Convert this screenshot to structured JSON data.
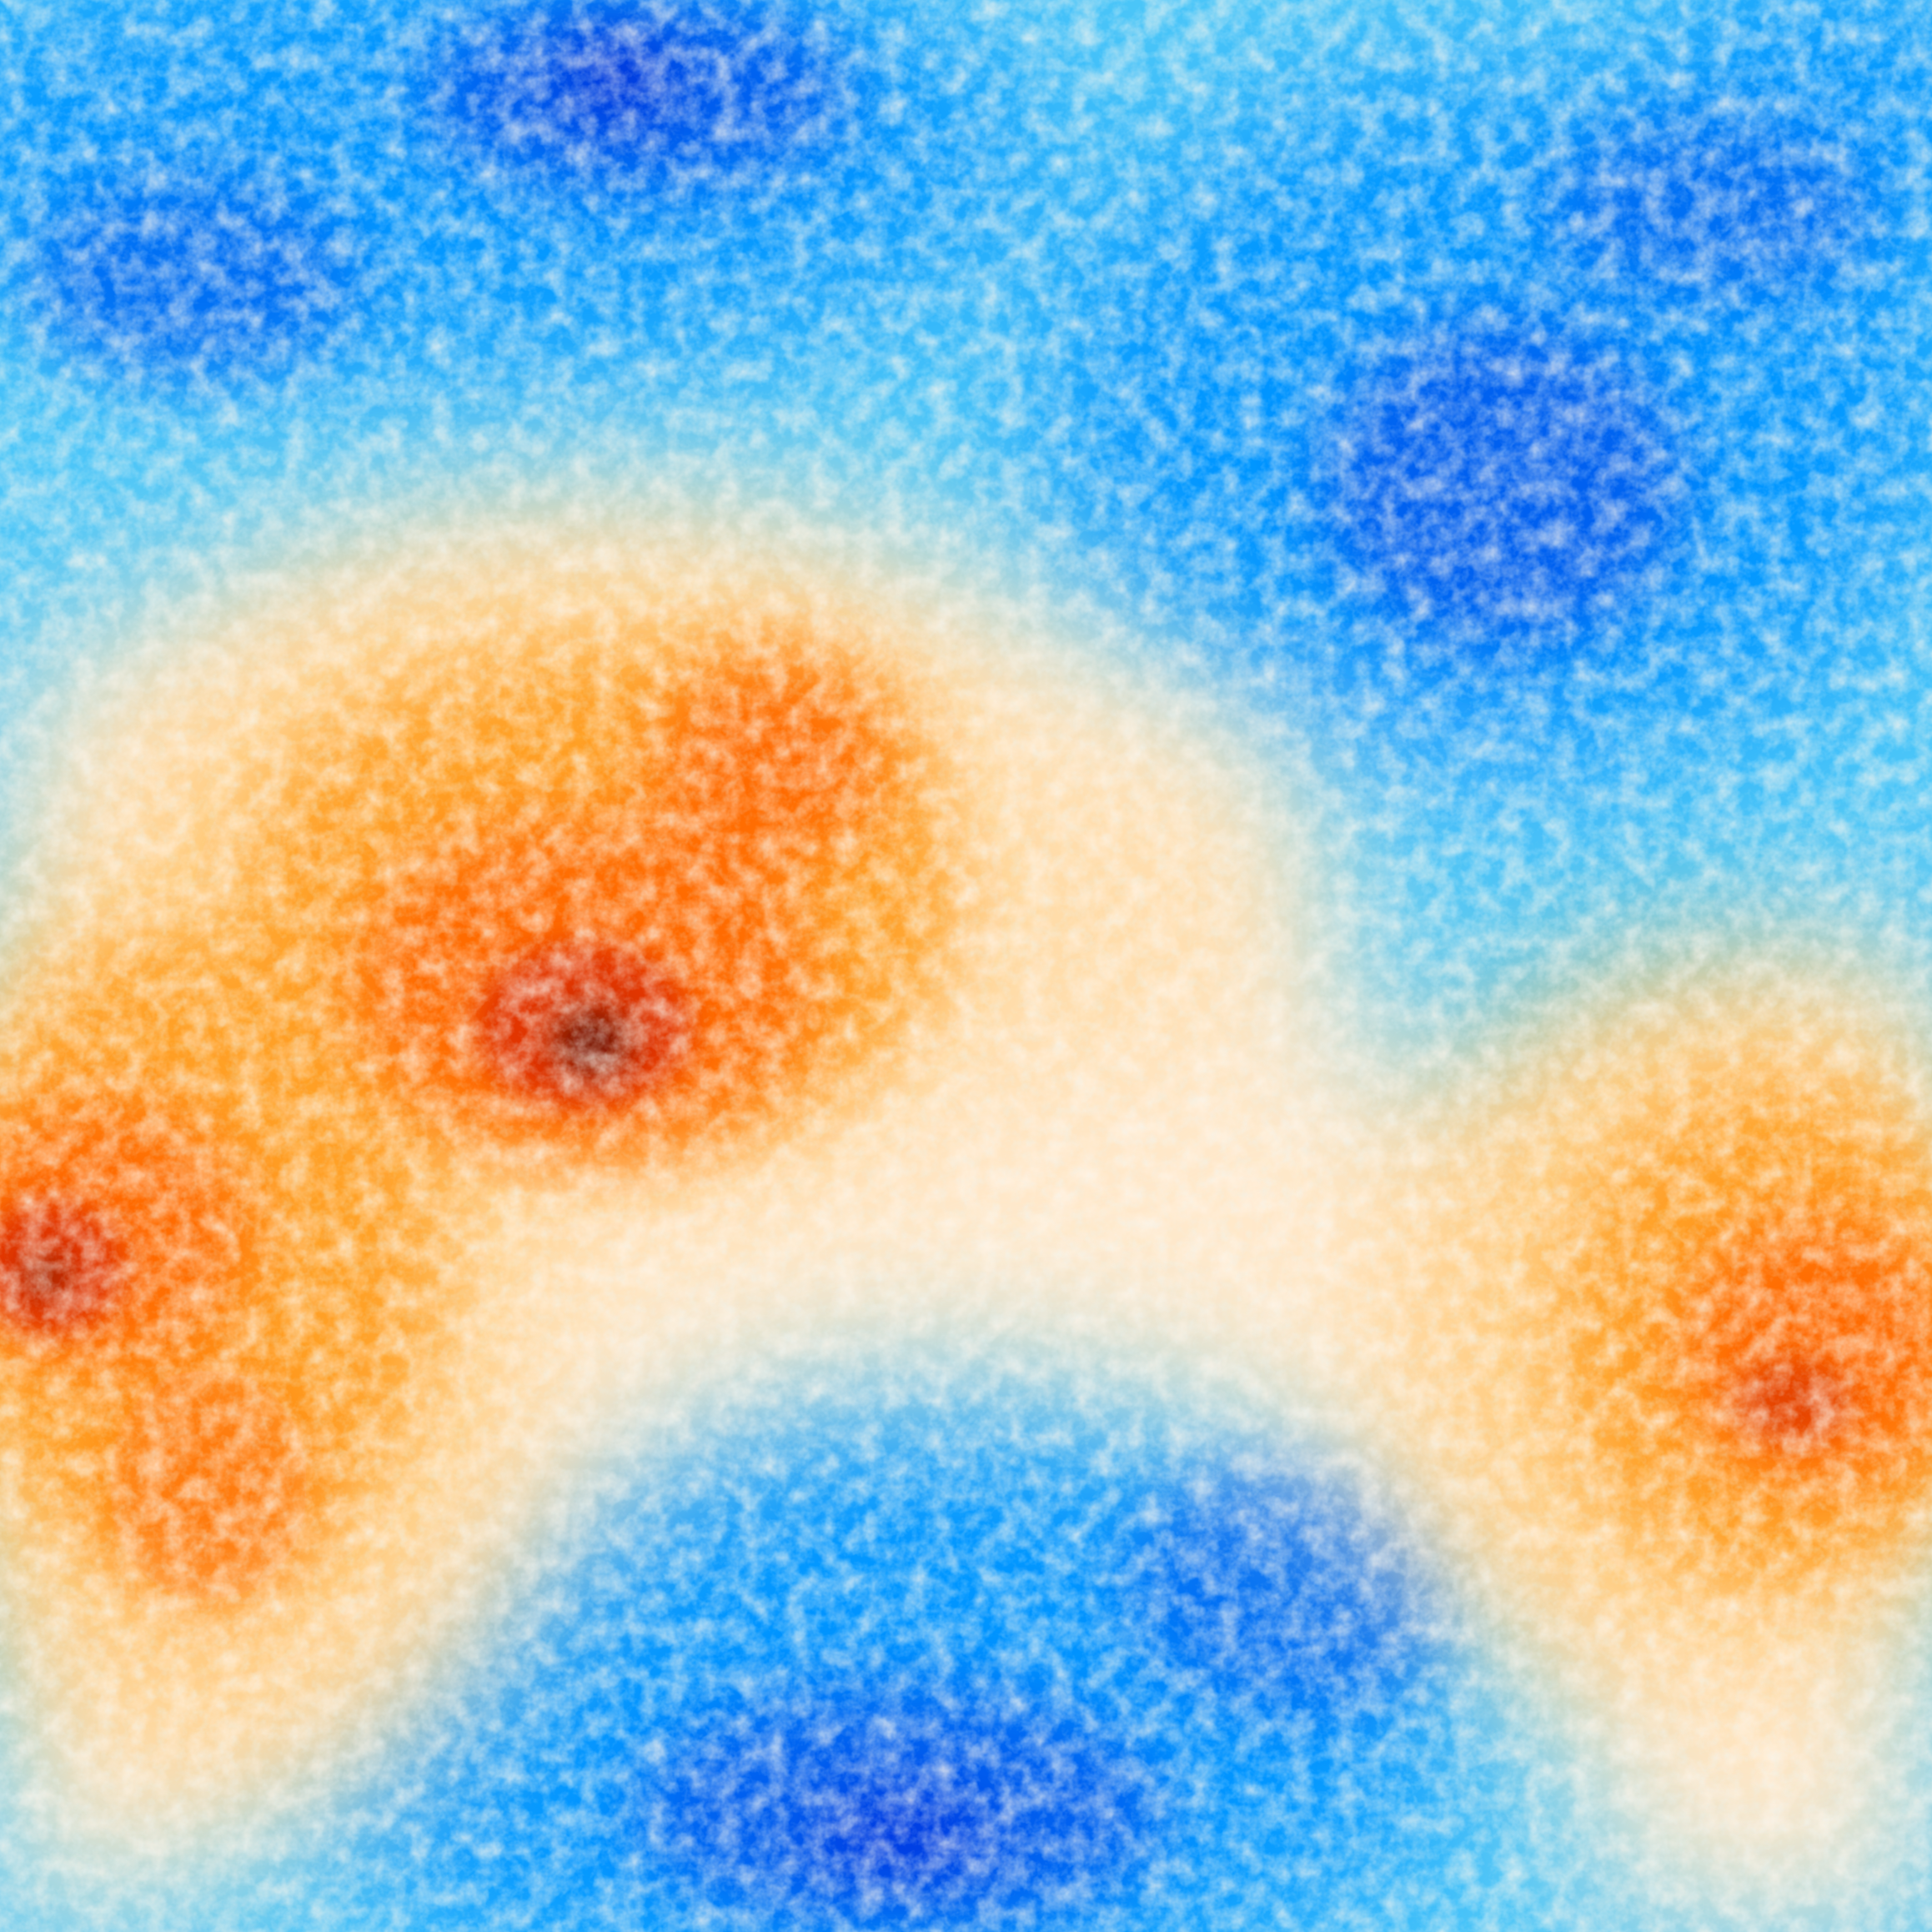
{
  "image": {
    "kind": "random-field-heatmap",
    "colormap": [
      {
        "stop": "deepest-blue",
        "color": "#0026d9"
      },
      {
        "stop": "deep-blue",
        "color": "#0060f0"
      },
      {
        "stop": "blue",
        "color": "#0096ff"
      },
      {
        "stop": "light-blue",
        "color": "#4cc6f8"
      },
      {
        "stop": "pale-blue",
        "color": "#c8ecf2"
      },
      {
        "stop": "cream",
        "color": "#ffe9cc"
      },
      {
        "stop": "light-orange",
        "color": "#ffcc80"
      },
      {
        "stop": "orange",
        "color": "#ffa126"
      },
      {
        "stop": "dark-orange",
        "color": "#ff6a00"
      },
      {
        "stop": "red-orange",
        "color": "#e23600"
      },
      {
        "stop": "dark-red",
        "color": "#7a1200"
      }
    ]
  }
}
